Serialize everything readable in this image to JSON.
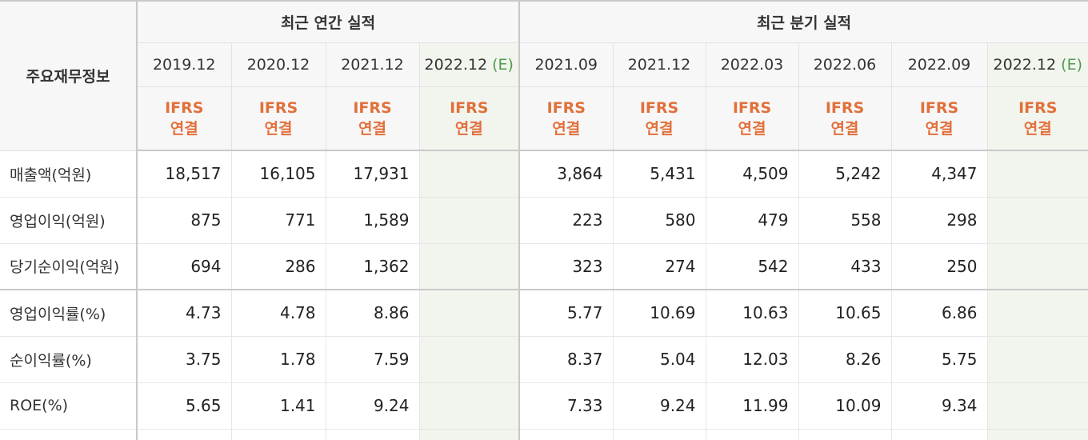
{
  "header": {
    "label": "주요재무정보",
    "annual_group": "최근 연간 실적",
    "quarter_group": "최근 분기 실적",
    "ifrs_line1": "IFRS",
    "ifrs_line2": "연결",
    "estimate_mark": "(E)",
    "annual_dates": [
      "2019.12",
      "2020.12",
      "2021.12",
      "2022.12"
    ],
    "quarter_dates": [
      "2021.09",
      "2021.12",
      "2022.03",
      "2022.06",
      "2022.09",
      "2022.12"
    ]
  },
  "rows": [
    {
      "label": "매출액(억원)",
      "annual": [
        "18,517",
        "16,105",
        "17,931",
        ""
      ],
      "quarter": [
        "3,864",
        "5,431",
        "4,509",
        "5,242",
        "4,347",
        ""
      ]
    },
    {
      "label": "영업이익(억원)",
      "annual": [
        "875",
        "771",
        "1,589",
        ""
      ],
      "quarter": [
        "223",
        "580",
        "479",
        "558",
        "298",
        ""
      ]
    },
    {
      "label": "당기순이익(억원)",
      "annual": [
        "694",
        "286",
        "1,362",
        ""
      ],
      "quarter": [
        "323",
        "274",
        "542",
        "433",
        "250",
        ""
      ]
    },
    {
      "label": "영업이익률(%)",
      "annual": [
        "4.73",
        "4.78",
        "8.86",
        ""
      ],
      "quarter": [
        "5.77",
        "10.69",
        "10.63",
        "10.65",
        "6.86",
        ""
      ]
    },
    {
      "label": "순이익률(%)",
      "annual": [
        "3.75",
        "1.78",
        "7.59",
        ""
      ],
      "quarter": [
        "8.37",
        "5.04",
        "12.03",
        "8.26",
        "5.75",
        ""
      ]
    },
    {
      "label": "ROE(%)",
      "annual": [
        "5.65",
        "1.41",
        "9.24",
        ""
      ],
      "quarter": [
        "7.33",
        "9.24",
        "11.99",
        "10.09",
        "9.34",
        ""
      ]
    }
  ]
}
